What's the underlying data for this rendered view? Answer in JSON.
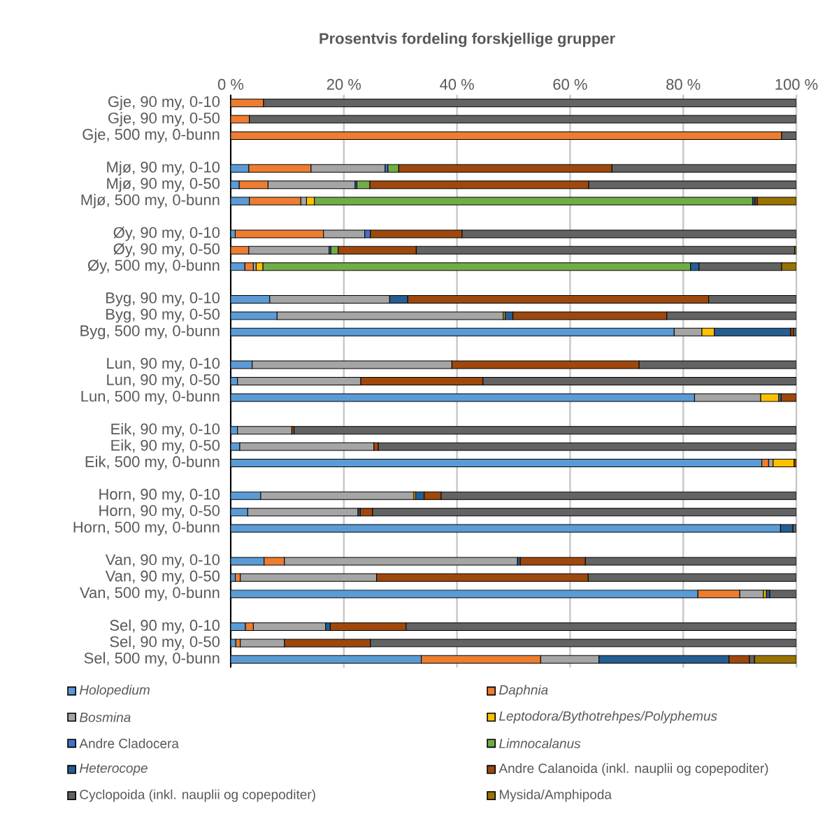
{
  "chart_data": {
    "type": "bar",
    "orientation": "horizontal",
    "stacked": true,
    "title": "Prosentvis fordeling forskjellige grupper",
    "categories": [
      "Gje, 90 my, 0-10",
      "Gje, 90 my, 0-50",
      "Gje, 500 my, 0-bunn",
      null,
      "Mjø, 90 my, 0-10",
      "Mjø, 90 my, 0-50",
      "Mjø, 500 my, 0-bunn",
      null,
      "Øy, 90 my, 0-10",
      "Øy, 90 my, 0-50",
      "Øy, 500 my, 0-bunn",
      null,
      "Byg, 90 my, 0-10",
      "Byg, 90 my, 0-50",
      "Byg, 500 my, 0-bunn",
      null,
      "Lun, 90 my, 0-10",
      "Lun, 90 my, 0-50",
      "Lun, 500 my, 0-bunn",
      null,
      "Eik, 90 my, 0-10",
      "Eik, 90 my, 0-50",
      "Eik, 500 my, 0-bunn",
      null,
      "Horn, 90 my, 0-10",
      "Horn, 90 my, 0-50",
      "Horn, 500 my, 0-bunn",
      null,
      "Van, 90 my, 0-10",
      "Van, 90 my, 0-50",
      "Van, 500 my, 0-bunn",
      null,
      "Sel, 90 my, 0-10",
      "Sel, 90 my, 0-50",
      "Sel, 500 my, 0-bunn"
    ],
    "series": [
      {
        "name": "*Holopedium*",
        "color": "#5b9bd5",
        "values": [
          null,
          null,
          null,
          null,
          3.2,
          1.5,
          3.3,
          null,
          0.8,
          null,
          2.5,
          null,
          6.9,
          8.2,
          78.4,
          null,
          3.8,
          1.2,
          82.0,
          null,
          1.2,
          1.6,
          93.9,
          null,
          5.3,
          3.0,
          97.2,
          null,
          5.9,
          0.8,
          82.6,
          null,
          2.6,
          0.9,
          33.7
        ]
      },
      {
        "name": "*Daphnia*",
        "color": "#ed7d31",
        "values": [
          5.8,
          3.3,
          97.4,
          null,
          11.0,
          5.1,
          9.1,
          null,
          15.6,
          3.2,
          1.5,
          null,
          null,
          null,
          null,
          null,
          null,
          null,
          null,
          null,
          null,
          null,
          1.2,
          null,
          null,
          null,
          null,
          null,
          3.6,
          0.9,
          7.4,
          null,
          1.4,
          0.8,
          21.1
        ]
      },
      {
        "name": "*Bosmina*",
        "color": "#a5a5a5",
        "values": [
          null,
          null,
          null,
          null,
          13.1,
          15.4,
          1.0,
          null,
          7.3,
          14.2,
          0.5,
          null,
          21.2,
          40.0,
          4.9,
          null,
          35.3,
          21.8,
          11.7,
          null,
          9.6,
          23.7,
          0.8,
          null,
          27.1,
          19.5,
          null,
          null,
          41.2,
          24.1,
          4.2,
          null,
          12.8,
          7.8,
          10.3
        ]
      },
      {
        "name": "*Leptodora/Bythotrehpes/Polyphemus*",
        "color": "#ffc000",
        "values": [
          null,
          null,
          null,
          null,
          null,
          null,
          1.4,
          null,
          null,
          null,
          1.2,
          null,
          null,
          0.3,
          2.2,
          null,
          null,
          null,
          3.2,
          null,
          null,
          null,
          3.7,
          null,
          0.3,
          null,
          null,
          null,
          null,
          null,
          0.5,
          null,
          null,
          null,
          null
        ]
      },
      {
        "name": "Andre Cladocera",
        "color": "#4472c4",
        "values": [
          null,
          null,
          null,
          null,
          0.5,
          0.3,
          null,
          null,
          1.0,
          0.3,
          null,
          null,
          null,
          null,
          null,
          null,
          null,
          null,
          0.4,
          null,
          null,
          null,
          null,
          null,
          null,
          null,
          null,
          null,
          null,
          null,
          null,
          null,
          null,
          null,
          null
        ]
      },
      {
        "name": "*Limnocalanus*",
        "color": "#70ad47",
        "values": [
          null,
          null,
          null,
          null,
          1.9,
          2.3,
          77.5,
          null,
          null,
          1.3,
          75.6,
          null,
          null,
          null,
          null,
          null,
          null,
          null,
          null,
          null,
          null,
          null,
          null,
          null,
          null,
          null,
          null,
          null,
          null,
          null,
          null,
          null,
          null,
          null,
          null
        ]
      },
      {
        "name": "*Heterocope*",
        "color": "#255e91",
        "values": [
          null,
          null,
          null,
          null,
          null,
          null,
          0.4,
          null,
          null,
          null,
          1.5,
          null,
          3.2,
          1.4,
          13.5,
          null,
          null,
          null,
          null,
          null,
          null,
          null,
          null,
          null,
          1.5,
          0.4,
          2.2,
          null,
          0.5,
          null,
          0.6,
          null,
          0.8,
          null,
          23.0
        ]
      },
      {
        "name": "Andre Calanoida (inkl. nauplii og copepoditer)",
        "color": "#9e480e",
        "values": [
          null,
          null,
          null,
          null,
          37.7,
          38.7,
          0.4,
          null,
          16.2,
          13.8,
          null,
          null,
          53.2,
          27.2,
          0.5,
          null,
          33.1,
          21.6,
          2.7,
          null,
          0.4,
          0.8,
          0.4,
          null,
          3.0,
          2.2,
          null,
          null,
          11.5,
          37.4,
          null,
          null,
          13.4,
          15.2,
          3.6
        ]
      },
      {
        "name": "Cyclopoida (inkl. nauplii og copepoditer)",
        "color": "#636363",
        "values": [
          94.2,
          96.7,
          2.6,
          null,
          32.6,
          36.7,
          null,
          null,
          59.1,
          66.9,
          14.6,
          null,
          15.5,
          22.9,
          0.5,
          null,
          27.8,
          55.4,
          null,
          null,
          88.8,
          73.9,
          null,
          null,
          62.8,
          74.9,
          0.6,
          null,
          37.3,
          36.8,
          4.7,
          null,
          69.0,
          75.3,
          0.9
        ]
      },
      {
        "name": "Mysida/Amphipoda",
        "color": "#997300",
        "values": [
          null,
          null,
          null,
          null,
          null,
          null,
          6.9,
          null,
          null,
          0.3,
          2.6,
          null,
          null,
          null,
          null,
          null,
          null,
          null,
          null,
          null,
          null,
          null,
          null,
          null,
          null,
          null,
          null,
          null,
          null,
          null,
          null,
          null,
          null,
          null,
          7.4
        ]
      }
    ],
    "xlim": [
      0,
      100
    ],
    "xticks": [
      {
        "value": 0,
        "label": "0 %"
      },
      {
        "value": 20,
        "label": "20 %"
      },
      {
        "value": 40,
        "label": "40 %"
      },
      {
        "value": 60,
        "label": "60 %"
      },
      {
        "value": 80,
        "label": "80 %"
      },
      {
        "value": 100,
        "label": "100 %"
      }
    ],
    "grid": "x",
    "legend": "bottom"
  }
}
